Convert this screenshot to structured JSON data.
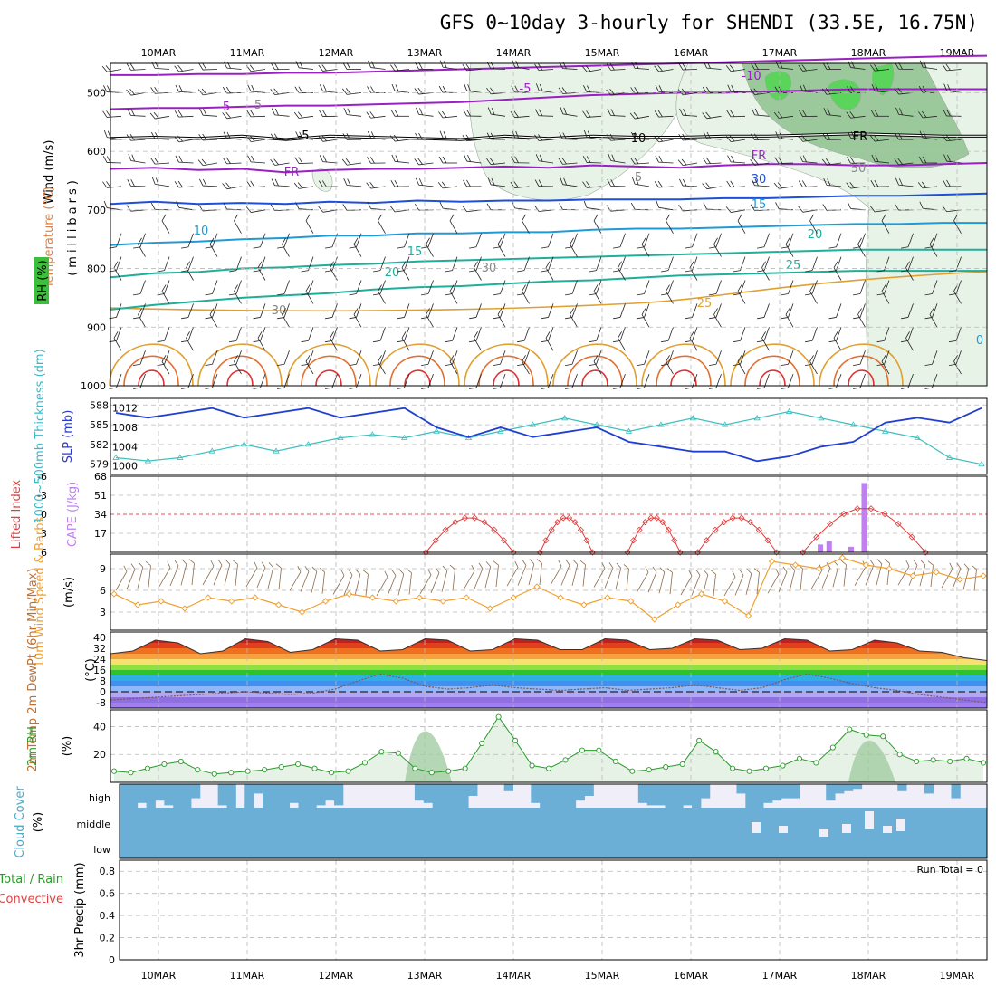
{
  "title": "GFS 0~10day 3-hourly for SHENDI (33.5E, 16.75N)",
  "dates": [
    "10MAR",
    "11MAR",
    "12MAR",
    "13MAR",
    "14MAR",
    "15MAR",
    "16MAR",
    "17MAR",
    "18MAR",
    "19MAR"
  ],
  "colors": {
    "temp_purple": "#9a1fc4",
    "temp_blue": "#1f4fd6",
    "temp_lightblue": "#1f9ad6",
    "temp_teal": "#1fae9a",
    "temp_orange": "#e0a030",
    "temp_red": "#e03030",
    "rh_green_light": "#e8f3e8",
    "rh_green_mid": "#9cc99c",
    "rh_green_dark": "#5bd45b",
    "slp_line": "#1f3fd0",
    "thickness_line": "#3cc0c0",
    "li_line": "#e03a3a",
    "cape_bar": "#c080f0",
    "wind_speed": "#f0a030",
    "wind_barb": "#8a6a4a",
    "rh2m_line": "#2a9a2a",
    "cloud_fill": "#6baed6",
    "cloud_bg": "#f0eef8"
  },
  "panels": {
    "upper": {
      "ylabel_wind": "Wind (m/s)",
      "ylabel_temp": "Temperature (°C)",
      "ylabel_rh": "RH (%)",
      "ylabel_p": "(millibars)",
      "yticks": [
        "500",
        "600",
        "700",
        "800",
        "900",
        "1000"
      ],
      "contour_labels": [
        "-5",
        "-10",
        "5",
        "-5",
        "10",
        "FR",
        "FR",
        "FR",
        "5",
        "5",
        "30",
        "10",
        "15",
        "15",
        "20",
        "20",
        "25",
        "25",
        "30",
        "10",
        "50",
        "0",
        "30"
      ],
      "isotherms": [
        {
          "label": "-10",
          "color_key": "temp_purple",
          "p": [
            470,
            470,
            468,
            468,
            466,
            466,
            464,
            462,
            460,
            458,
            456,
            454,
            452,
            450,
            448,
            446,
            444,
            442,
            440,
            438,
            437
          ]
        },
        {
          "label": "-5",
          "color_key": "temp_purple",
          "p": [
            528,
            526,
            526,
            524,
            522,
            522,
            520,
            518,
            516,
            512,
            508,
            504,
            502,
            500,
            500,
            498,
            496,
            494,
            494,
            494,
            494
          ]
        },
        {
          "label": "FR",
          "color_key": "frz",
          "p": [
            578,
            576,
            578,
            574,
            580,
            574,
            576,
            578,
            580,
            574,
            578,
            574,
            576,
            576,
            574,
            574,
            572,
            570,
            572,
            574,
            574
          ]
        },
        {
          "label": "5",
          "color_key": "temp_purple",
          "p": [
            630,
            628,
            632,
            630,
            636,
            632,
            630,
            630,
            628,
            626,
            628,
            624,
            626,
            628,
            624,
            622,
            622,
            624,
            624,
            622,
            620
          ]
        },
        {
          "label": "10",
          "color_key": "temp_blue",
          "p": [
            690,
            686,
            690,
            688,
            690,
            686,
            688,
            684,
            686,
            684,
            684,
            682,
            682,
            682,
            680,
            680,
            678,
            676,
            676,
            674,
            672
          ]
        },
        {
          "label": "15",
          "color_key": "temp_lightblue",
          "p": [
            760,
            756,
            754,
            750,
            748,
            744,
            744,
            740,
            740,
            738,
            738,
            734,
            732,
            732,
            730,
            728,
            726,
            724,
            724,
            722,
            722
          ]
        },
        {
          "label": "20",
          "color_key": "temp_teal",
          "p": [
            815,
            808,
            806,
            800,
            798,
            794,
            792,
            788,
            786,
            784,
            782,
            780,
            778,
            776,
            774,
            772,
            770,
            768,
            768,
            768,
            768
          ]
        },
        {
          "label": "25",
          "color_key": "temp_teal",
          "p": [
            870,
            862,
            856,
            850,
            846,
            842,
            836,
            832,
            830,
            826,
            822,
            820,
            816,
            812,
            810,
            808,
            806,
            804,
            804,
            804,
            804
          ]
        }
      ]
    },
    "thickness_slp": {
      "ylabel_left": "1000~500mb Thickness (dm)",
      "ylabel_right": "SLP (mb)",
      "yticks_left": [
        "588",
        "585",
        "582",
        "579"
      ],
      "yticks_right": [
        "1012",
        "1008",
        "1004",
        "1000"
      ],
      "slp_values": [
        1011,
        1010,
        1011,
        1012,
        1010,
        1011,
        1012,
        1010,
        1011,
        1012,
        1008,
        1006,
        1008,
        1006,
        1007,
        1008,
        1005,
        1004,
        1003,
        1003,
        1001,
        1002,
        1004,
        1005,
        1009,
        1010,
        1009,
        1012
      ],
      "thickness_values": [
        580,
        579.5,
        580,
        581,
        582,
        581,
        582,
        583,
        583.5,
        583,
        584,
        583,
        584,
        585,
        586,
        585,
        584,
        585,
        586,
        585,
        586,
        587,
        586,
        585,
        584,
        583,
        580,
        579
      ]
    },
    "li_cape": {
      "ylabel_left": "Lifted Index",
      "ylabel_right": "CAPE (J/kg)",
      "yticks_left": [
        "-6",
        "-3",
        "0",
        "3",
        "6"
      ],
      "yticks_right": [
        "68",
        "51",
        "34",
        "17"
      ],
      "li_values": [
        4,
        2,
        1.5,
        2,
        4,
        3,
        2,
        4,
        2.5,
        2,
        3,
        4,
        0,
        -1,
        0,
        1,
        0,
        1,
        -0.5,
        -1,
        1,
        2,
        5,
        5,
        5,
        5,
        5,
        5
      ],
      "cape_bars": [
        {
          "x": 0.81,
          "v": 7
        },
        {
          "x": 0.82,
          "v": 10
        },
        {
          "x": 0.845,
          "v": 5
        },
        {
          "x": 0.86,
          "v": 62
        }
      ]
    },
    "wind10m": {
      "ylabel": "10m Wind Speed & Barbs",
      "yunit": "(m/s)",
      "yticks": [
        "9",
        "6",
        "3"
      ],
      "speed_values": [
        5.5,
        4,
        4.5,
        3.5,
        5,
        4.5,
        5,
        4,
        3,
        4.5,
        5.5,
        5,
        4.5,
        5,
        4.5,
        5,
        3.5,
        5,
        6.5,
        5,
        4,
        5,
        4.5,
        2,
        4,
        5.5,
        4.5,
        2.5,
        10,
        9.5,
        9,
        10.5,
        9.5,
        9,
        8,
        8.5,
        7.5,
        8
      ]
    },
    "temp2m": {
      "ylabel": "2m Temp 2m DewPt (6hr Min/Max)",
      "yunit": "(°C)",
      "yticks": [
        "40",
        "32",
        "24",
        "16",
        "8",
        "0",
        "-8"
      ],
      "temp_values": [
        28,
        30,
        38,
        36,
        28,
        30,
        39,
        37,
        29,
        31,
        39,
        38,
        30,
        31,
        39,
        38,
        30,
        31,
        39,
        38,
        31,
        31,
        39,
        38,
        31,
        32,
        39,
        38,
        31,
        32,
        39,
        38,
        30,
        31,
        38,
        36,
        30,
        29,
        25,
        23
      ],
      "dewpt_values": [
        -6,
        -5,
        -4,
        -3,
        -2,
        -1,
        0,
        -1,
        -2,
        -1,
        2,
        8,
        13,
        10,
        4,
        2,
        3,
        5,
        3,
        2,
        1,
        2,
        3,
        1,
        2,
        3,
        5,
        3,
        1,
        3,
        9,
        13,
        10,
        6,
        3,
        1,
        -2,
        -4,
        -6,
        -8
      ]
    },
    "rh2m": {
      "ylabel": "2m RH",
      "yunit": "(%)",
      "yticks": [
        "40",
        "20"
      ],
      "values": [
        8,
        7,
        10,
        13,
        15,
        9,
        6,
        7,
        8,
        9,
        11,
        13,
        10,
        7,
        8,
        14,
        22,
        21,
        10,
        7,
        8,
        10,
        28,
        47,
        30,
        12,
        10,
        16,
        23,
        23,
        15,
        8,
        9,
        11,
        13,
        30,
        22,
        10,
        8,
        10,
        12,
        17,
        14,
        25,
        38,
        34,
        33,
        20,
        15,
        16,
        15,
        17,
        14
      ]
    },
    "cloud": {
      "ylabel": "Cloud Cover",
      "yunit": "(%)",
      "levels": [
        "high",
        "middle",
        "low"
      ]
    },
    "precip": {
      "ylabel_left": "Total / Rain",
      "ylabel_left2": "Convective",
      "ylabel_right": "3hr Precip (mm)",
      "yticks": [
        "0.8",
        "0.6",
        "0.4",
        "0.2",
        "0"
      ],
      "run_total": "Run Total = 0"
    }
  },
  "chart_data": [
    {
      "type": "line",
      "title": "GFS 0~10day 3-hourly for SHENDI (33.5E, 16.75N)",
      "x": [
        "10MAR",
        "11MAR",
        "12MAR",
        "13MAR",
        "14MAR",
        "15MAR",
        "16MAR",
        "17MAR",
        "18MAR",
        "19MAR"
      ],
      "series": [
        {
          "name": "SLP (mb)",
          "values": [
            1011,
            1012,
            1011,
            1010,
            1007,
            1006,
            1004,
            1002,
            1004,
            1012
          ]
        },
        {
          "name": "1000~500mb Thickness (dm)",
          "values": [
            580,
            581,
            583,
            584,
            585,
            586,
            586,
            586,
            585,
            579
          ]
        }
      ],
      "ylim": [
        1000,
        1012
      ]
    },
    {
      "type": "bar",
      "ylabel": "CAPE (J/kg)",
      "categories": [
        "17MAR",
        "17MAR",
        "17MAR",
        "18MAR"
      ],
      "values": [
        7,
        10,
        5,
        62
      ],
      "ylim": [
        0,
        68
      ]
    },
    {
      "type": "area",
      "ylabel": "2m RH",
      "x": [
        "10MAR",
        "11MAR",
        "12MAR",
        "13MAR",
        "14MAR",
        "15MAR",
        "16MAR",
        "17MAR",
        "18MAR",
        "19MAR"
      ],
      "values": [
        10,
        11,
        22,
        47,
        23,
        10,
        28,
        22,
        38,
        15
      ],
      "ylim": [
        0,
        50
      ]
    },
    {
      "type": "line",
      "ylabel": "3hr Precip (mm)",
      "values": [
        0,
        0,
        0,
        0,
        0,
        0,
        0,
        0,
        0,
        0
      ],
      "ylim": [
        0,
        0.9
      ],
      "annotation": "Run Total = 0"
    }
  ]
}
